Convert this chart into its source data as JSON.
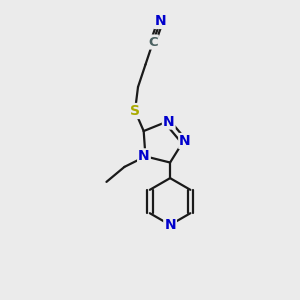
{
  "background_color": "#ebebeb",
  "bond_color": "#1a1a1a",
  "bond_width": 1.6,
  "atom_colors": {
    "C": "#4a6060",
    "N": "#0000cc",
    "S": "#aaaa00",
    "H": "#1a1a1a"
  },
  "figsize": [
    3.0,
    3.0
  ],
  "dpi": 100,
  "xlim": [
    0,
    10
  ],
  "ylim": [
    0,
    10
  ]
}
